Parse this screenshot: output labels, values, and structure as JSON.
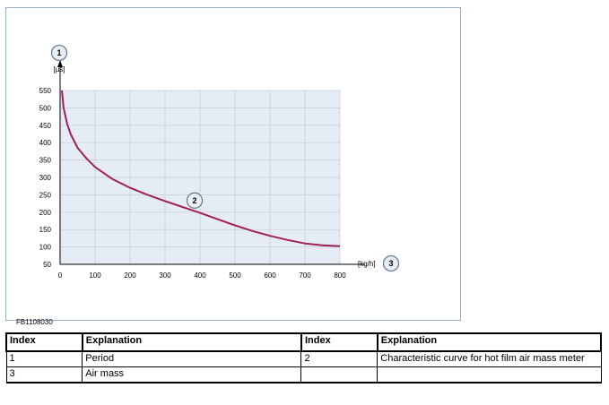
{
  "figure": {
    "id": "FB1108030"
  },
  "chart_data": {
    "type": "line",
    "xlabel": "[kg/h]",
    "ylabel": "[µs]",
    "xlim": [
      0,
      800
    ],
    "ylim": [
      50,
      550
    ],
    "x_ticks": [
      0,
      100,
      200,
      300,
      400,
      500,
      600,
      700,
      800
    ],
    "y_ticks": [
      50,
      100,
      150,
      200,
      250,
      300,
      350,
      400,
      450,
      500,
      550
    ],
    "grid": true,
    "background": "#e6ecf4",
    "series": [
      {
        "color": "#a0205a",
        "x": [
          5,
          10,
          20,
          30,
          50,
          75,
          100,
          150,
          200,
          250,
          300,
          350,
          400,
          450,
          500,
          550,
          600,
          650,
          700,
          750,
          800
        ],
        "y": [
          550,
          500,
          455,
          425,
          385,
          355,
          330,
          295,
          270,
          250,
          232,
          215,
          198,
          180,
          162,
          146,
          132,
          120,
          110,
          105,
          102
        ]
      }
    ],
    "callouts": [
      {
        "label": "1",
        "target": "y-axis"
      },
      {
        "label": "2",
        "target": "curve",
        "x": 400,
        "y": 218
      },
      {
        "label": "3",
        "target": "x-axis"
      }
    ]
  },
  "legend_table": {
    "headers": [
      "Index",
      "Explanation",
      "Index",
      "Explanation"
    ],
    "rows": [
      [
        "1",
        "Period",
        "2",
        "Characteristic curve for hot film air mass meter"
      ],
      [
        "3",
        "Air mass",
        "",
        ""
      ]
    ]
  }
}
